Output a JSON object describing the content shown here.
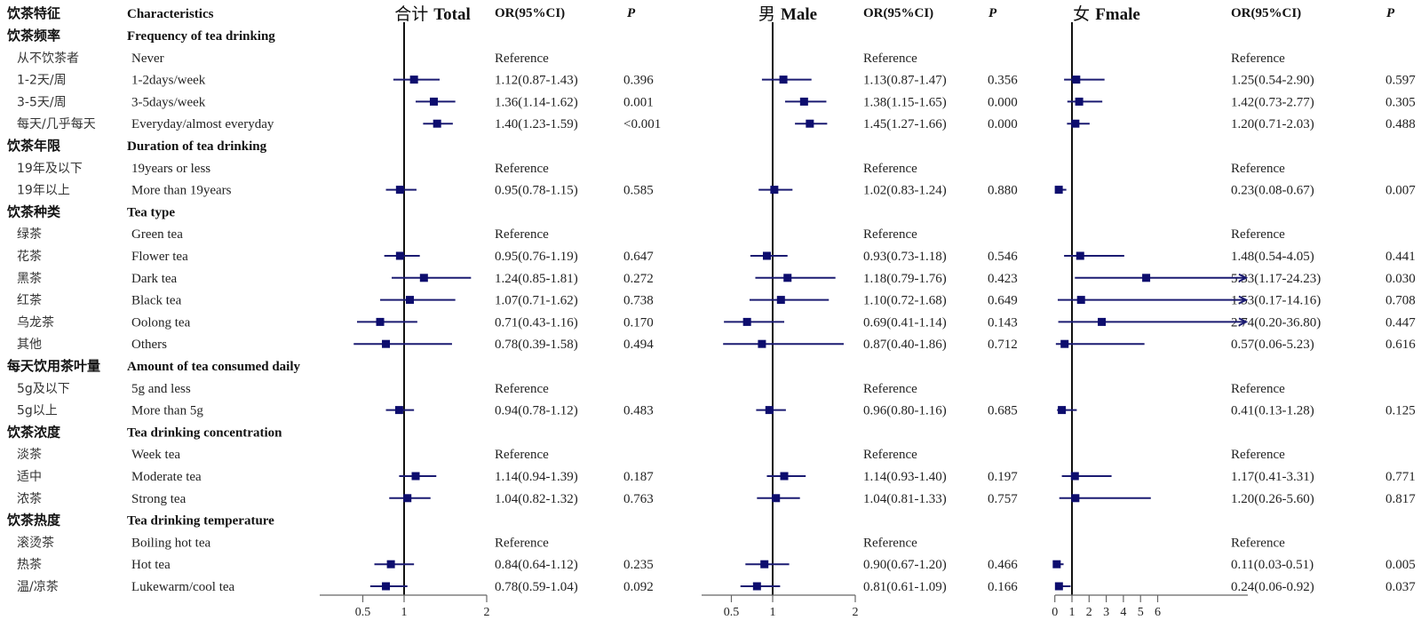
{
  "chart_data": {
    "type": "forest",
    "header": {
      "cn": "饮茶特征",
      "en": "Characteristics",
      "or_label": "OR(95%CI)",
      "p_label": "P"
    },
    "panels": [
      {
        "key": "total",
        "title_cn": "合计",
        "title_en": "Total",
        "scale": "linear",
        "xlim": [
          0,
          2
        ],
        "ticks": [
          0.5,
          1,
          2
        ],
        "ref_line": 1
      },
      {
        "key": "male",
        "title_cn": "男",
        "title_en": "Male",
        "scale": "linear",
        "xlim": [
          0,
          2
        ],
        "ticks": [
          0.5,
          1,
          2
        ],
        "ref_line": 1
      },
      {
        "key": "female",
        "title_cn": "女",
        "title_en": "Fmale",
        "scale": "linear",
        "xlim": [
          0,
          6
        ],
        "ticks": [
          0,
          1,
          2,
          3,
          4,
          5,
          6
        ],
        "ref_line": 1
      }
    ],
    "rows": [
      {
        "type": "group",
        "cn": "饮茶频率",
        "en": "Frequency of tea drinking"
      },
      {
        "type": "item",
        "cn": "从不饮茶者",
        "en": "Never",
        "total": {
          "ref": true,
          "text": "Reference",
          "p": ""
        },
        "male": {
          "ref": true,
          "text": "Reference",
          "p": ""
        },
        "female": {
          "ref": true,
          "text": "Reference",
          "p": ""
        }
      },
      {
        "type": "item",
        "cn": "1-2天/周",
        "en": "1-2days/week",
        "total": {
          "or": 1.12,
          "lo": 0.87,
          "hi": 1.43,
          "text": "1.12(0.87-1.43)",
          "p": "0.396"
        },
        "male": {
          "or": 1.13,
          "lo": 0.87,
          "hi": 1.47,
          "text": "1.13(0.87-1.47)",
          "p": "0.356"
        },
        "female": {
          "or": 1.25,
          "lo": 0.54,
          "hi": 2.9,
          "text": "1.25(0.54-2.90)",
          "p": "0.597"
        }
      },
      {
        "type": "item",
        "cn": "3-5天/周",
        "en": "3-5days/week",
        "total": {
          "or": 1.36,
          "lo": 1.14,
          "hi": 1.62,
          "text": "1.36(1.14-1.62)",
          "p": "0.001"
        },
        "male": {
          "or": 1.38,
          "lo": 1.15,
          "hi": 1.65,
          "text": "1.38(1.15-1.65)",
          "p": "0.000"
        },
        "female": {
          "or": 1.42,
          "lo": 0.73,
          "hi": 2.77,
          "text": "1.42(0.73-2.77)",
          "p": "0.305"
        }
      },
      {
        "type": "item",
        "cn": "每天/几乎每天",
        "en": "Everyday/almost everyday",
        "total": {
          "or": 1.4,
          "lo": 1.23,
          "hi": 1.59,
          "text": "1.40(1.23-1.59)",
          "p": "<0.001"
        },
        "male": {
          "or": 1.45,
          "lo": 1.27,
          "hi": 1.66,
          "text": "1.45(1.27-1.66)",
          "p": "0.000"
        },
        "female": {
          "or": 1.2,
          "lo": 0.71,
          "hi": 2.03,
          "text": "1.20(0.71-2.03)",
          "p": "0.488"
        }
      },
      {
        "type": "group",
        "cn": "饮茶年限",
        "en": "Duration of tea drinking"
      },
      {
        "type": "item",
        "cn": "19年及以下",
        "en": "19years or less",
        "total": {
          "ref": true,
          "text": "Reference",
          "p": ""
        },
        "male": {
          "ref": true,
          "text": "Reference",
          "p": ""
        },
        "female": {
          "ref": true,
          "text": "Reference",
          "p": ""
        }
      },
      {
        "type": "item",
        "cn": "19年以上",
        "en": "More than 19years",
        "total": {
          "or": 0.95,
          "lo": 0.78,
          "hi": 1.15,
          "text": "0.95(0.78-1.15)",
          "p": "0.585"
        },
        "male": {
          "or": 1.02,
          "lo": 0.83,
          "hi": 1.24,
          "text": "1.02(0.83-1.24)",
          "p": "0.880"
        },
        "female": {
          "or": 0.23,
          "lo": 0.08,
          "hi": 0.67,
          "text": "0.23(0.08-0.67)",
          "p": "0.007"
        }
      },
      {
        "type": "group",
        "cn": "饮茶种类",
        "en": "Tea type"
      },
      {
        "type": "item",
        "cn": "绿茶",
        "en": "Green tea",
        "total": {
          "ref": true,
          "text": "Reference",
          "p": ""
        },
        "male": {
          "ref": true,
          "text": "Reference",
          "p": ""
        },
        "female": {
          "ref": true,
          "text": "Reference",
          "p": ""
        }
      },
      {
        "type": "item",
        "cn": "花茶",
        "en": "Flower tea",
        "total": {
          "or": 0.95,
          "lo": 0.76,
          "hi": 1.19,
          "text": "0.95(0.76-1.19)",
          "p": "0.647"
        },
        "male": {
          "or": 0.93,
          "lo": 0.73,
          "hi": 1.18,
          "text": "0.93(0.73-1.18)",
          "p": "0.546"
        },
        "female": {
          "or": 1.48,
          "lo": 0.54,
          "hi": 4.05,
          "text": "1.48(0.54-4.05)",
          "p": "0.441"
        }
      },
      {
        "type": "item",
        "cn": "黑茶",
        "en": "Dark tea",
        "total": {
          "or": 1.24,
          "lo": 0.85,
          "hi": 1.81,
          "text": "1.24(0.85-1.81)",
          "p": "0.272"
        },
        "male": {
          "or": 1.18,
          "lo": 0.79,
          "hi": 1.76,
          "text": "1.18(0.79-1.76)",
          "p": "0.423"
        },
        "female": {
          "or": 5.33,
          "lo": 1.17,
          "hi": 24.23,
          "text": "5.33(1.17-24.23)",
          "p": "0.030"
        }
      },
      {
        "type": "item",
        "cn": "红茶",
        "en": "Black tea",
        "total": {
          "or": 1.07,
          "lo": 0.71,
          "hi": 1.62,
          "text": "1.07(0.71-1.62)",
          "p": "0.738"
        },
        "male": {
          "or": 1.1,
          "lo": 0.72,
          "hi": 1.68,
          "text": "1.10(0.72-1.68)",
          "p": "0.649"
        },
        "female": {
          "or": 1.53,
          "lo": 0.17,
          "hi": 14.16,
          "text": "1.53(0.17-14.16)",
          "p": "0.708"
        }
      },
      {
        "type": "item",
        "cn": "乌龙茶",
        "en": "Oolong tea",
        "total": {
          "or": 0.71,
          "lo": 0.43,
          "hi": 1.16,
          "text": "0.71(0.43-1.16)",
          "p": "0.170"
        },
        "male": {
          "or": 0.69,
          "lo": 0.41,
          "hi": 1.14,
          "text": "0.69(0.41-1.14)",
          "p": "0.143"
        },
        "female": {
          "or": 2.74,
          "lo": 0.2,
          "hi": 36.8,
          "text": "2.74(0.20-36.80)",
          "p": "0.447"
        }
      },
      {
        "type": "item",
        "cn": "其他",
        "en": "Others",
        "total": {
          "or": 0.78,
          "lo": 0.39,
          "hi": 1.58,
          "text": "0.78(0.39-1.58)",
          "p": "0.494"
        },
        "male": {
          "or": 0.87,
          "lo": 0.4,
          "hi": 1.86,
          "text": "0.87(0.40-1.86)",
          "p": "0.712"
        },
        "female": {
          "or": 0.57,
          "lo": 0.06,
          "hi": 5.23,
          "text": "0.57(0.06-5.23)",
          "p": "0.616"
        }
      },
      {
        "type": "group",
        "cn": "每天饮用茶叶量",
        "en": "Amount of tea consumed daily"
      },
      {
        "type": "item",
        "cn": "5g及以下",
        "en": "5g and less",
        "total": {
          "ref": true,
          "text": "Reference",
          "p": ""
        },
        "male": {
          "ref": true,
          "text": "Reference",
          "p": ""
        },
        "female": {
          "ref": true,
          "text": "Reference",
          "p": ""
        }
      },
      {
        "type": "item",
        "cn": "5g以上",
        "en": "More than 5g",
        "total": {
          "or": 0.94,
          "lo": 0.78,
          "hi": 1.12,
          "text": "0.94(0.78-1.12)",
          "p": "0.483"
        },
        "male": {
          "or": 0.96,
          "lo": 0.8,
          "hi": 1.16,
          "text": "0.96(0.80-1.16)",
          "p": "0.685"
        },
        "female": {
          "or": 0.41,
          "lo": 0.13,
          "hi": 1.28,
          "text": "0.41(0.13-1.28)",
          "p": "0.125"
        }
      },
      {
        "type": "group",
        "cn": "饮茶浓度",
        "en": "Tea drinking concentration"
      },
      {
        "type": "item",
        "cn": "淡茶",
        "en": "Week tea",
        "total": {
          "ref": true,
          "text": "Reference",
          "p": ""
        },
        "male": {
          "ref": true,
          "text": "Reference",
          "p": ""
        },
        "female": {
          "ref": true,
          "text": "Reference",
          "p": ""
        }
      },
      {
        "type": "item",
        "cn": "适中",
        "en": "Moderate tea",
        "total": {
          "or": 1.14,
          "lo": 0.94,
          "hi": 1.39,
          "text": "1.14(0.94-1.39)",
          "p": "0.187"
        },
        "male": {
          "or": 1.14,
          "lo": 0.93,
          "hi": 1.4,
          "text": "1.14(0.93-1.40)",
          "p": "0.197"
        },
        "female": {
          "or": 1.17,
          "lo": 0.41,
          "hi": 3.31,
          "text": "1.17(0.41-3.31)",
          "p": "0.771"
        }
      },
      {
        "type": "item",
        "cn": "浓茶",
        "en": "Strong tea",
        "total": {
          "or": 1.04,
          "lo": 0.82,
          "hi": 1.32,
          "text": "1.04(0.82-1.32)",
          "p": "0.763"
        },
        "male": {
          "or": 1.04,
          "lo": 0.81,
          "hi": 1.33,
          "text": "1.04(0.81-1.33)",
          "p": "0.757"
        },
        "female": {
          "or": 1.2,
          "lo": 0.26,
          "hi": 5.6,
          "text": "1.20(0.26-5.60)",
          "p": "0.817"
        }
      },
      {
        "type": "group",
        "cn": "饮茶热度",
        "en": "Tea drinking temperature"
      },
      {
        "type": "item",
        "cn": "滚烫茶",
        "en": "Boiling hot tea",
        "total": {
          "ref": true,
          "text": "Reference",
          "p": ""
        },
        "male": {
          "ref": true,
          "text": "Reference",
          "p": ""
        },
        "female": {
          "ref": true,
          "text": "Reference",
          "p": ""
        }
      },
      {
        "type": "item",
        "cn": "热茶",
        "en": "Hot tea",
        "total": {
          "or": 0.84,
          "lo": 0.64,
          "hi": 1.12,
          "text": "0.84(0.64-1.12)",
          "p": "0.235"
        },
        "male": {
          "or": 0.9,
          "lo": 0.67,
          "hi": 1.2,
          "text": "0.90(0.67-1.20)",
          "p": "0.466"
        },
        "female": {
          "or": 0.11,
          "lo": 0.03,
          "hi": 0.51,
          "text": "0.11(0.03-0.51)",
          "p": "0.005"
        }
      },
      {
        "type": "item",
        "cn": "温/凉茶",
        "en": "Lukewarm/cool tea",
        "total": {
          "or": 0.78,
          "lo": 0.59,
          "hi": 1.04,
          "text": "0.78(0.59-1.04)",
          "p": "0.092"
        },
        "male": {
          "or": 0.81,
          "lo": 0.61,
          "hi": 1.09,
          "text": "0.81(0.61-1.09)",
          "p": "0.166"
        },
        "female": {
          "or": 0.24,
          "lo": 0.06,
          "hi": 0.92,
          "text": "0.24(0.06-0.92)",
          "p": "0.037"
        }
      }
    ],
    "colors": {
      "marker": "#0d0d6e",
      "ci_line": "#1b1b72",
      "axis": "#666666",
      "ref_line": "#111111"
    }
  }
}
